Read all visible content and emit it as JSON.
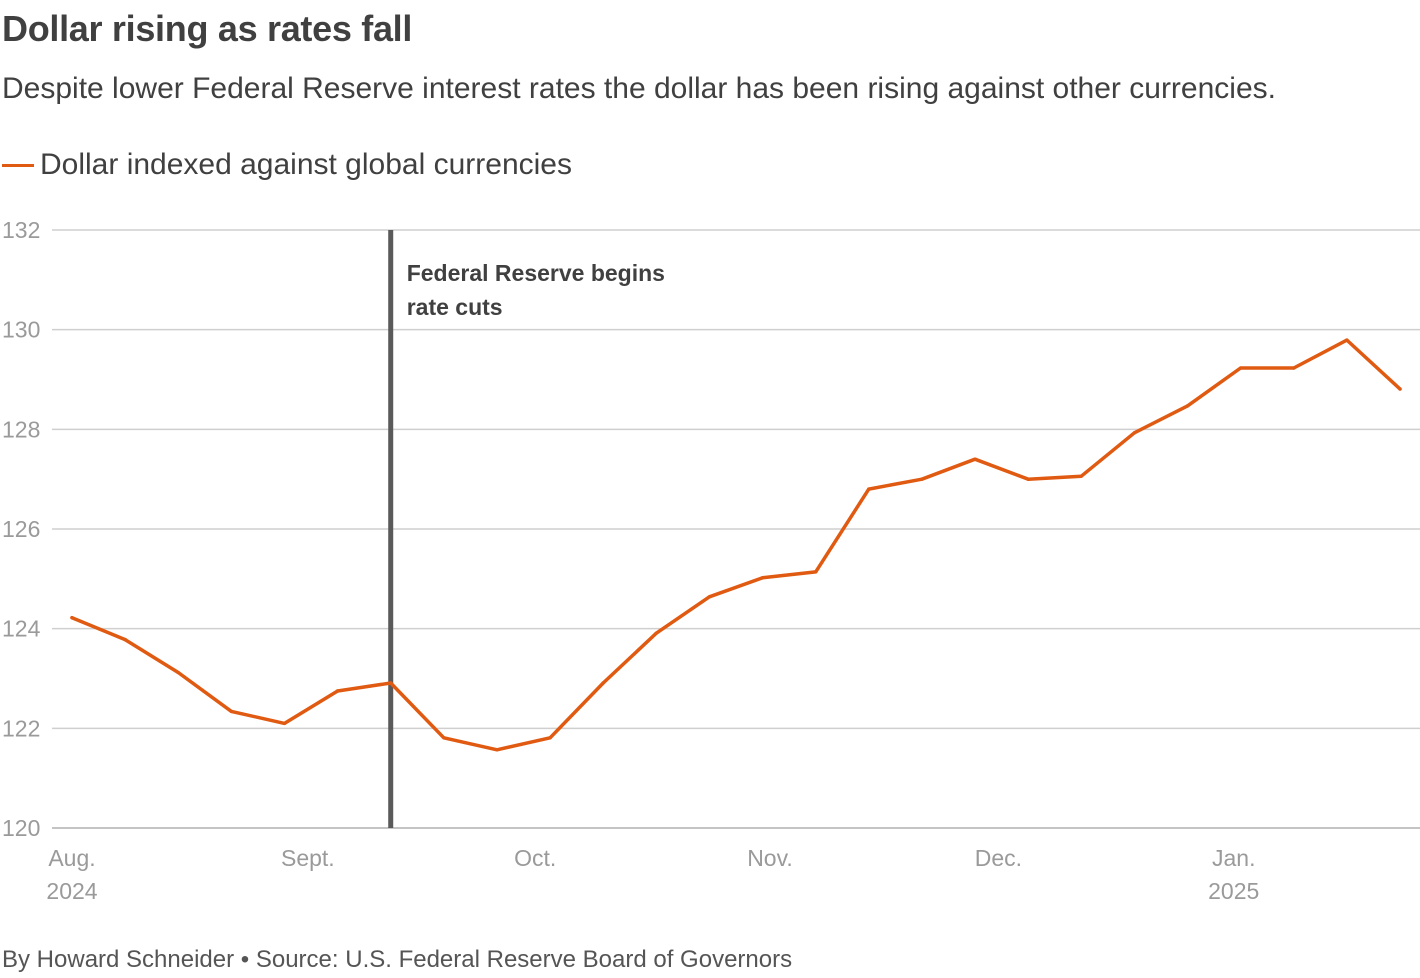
{
  "chart_data": {
    "type": "line",
    "title": "Dollar rising as rates fall",
    "subtitle": "Despite lower Federal Reserve interest rates the dollar has been rising against other currencies.",
    "series": [
      {
        "name": "Dollar indexed against global currencies",
        "color": "#e05a12",
        "values": [
          124.22,
          123.78,
          123.12,
          122.34,
          122.1,
          122.75,
          122.91,
          121.81,
          121.57,
          121.81,
          122.91,
          123.91,
          124.64,
          125.02,
          125.14,
          126.8,
          127.0,
          127.4,
          127.0,
          127.06,
          127.93,
          128.47,
          129.23,
          129.23,
          129.79,
          128.81
        ]
      }
    ],
    "x_ticks": [
      {
        "index": 0,
        "label": "Aug.",
        "sublabel": "2024"
      },
      {
        "index": 4.44,
        "label": "Sept.",
        "sublabel": ""
      },
      {
        "index": 8.72,
        "label": "Oct.",
        "sublabel": ""
      },
      {
        "index": 13.14,
        "label": "Nov.",
        "sublabel": ""
      },
      {
        "index": 17.44,
        "label": "Dec.",
        "sublabel": ""
      },
      {
        "index": 21.87,
        "label": "Jan.",
        "sublabel": "2025"
      }
    ],
    "y_ticks": [
      120,
      122,
      124,
      126,
      128,
      130,
      132
    ],
    "ylim": [
      120,
      132
    ],
    "grid": true,
    "legend_position": "top-left",
    "annotation": {
      "index": 6,
      "lines": [
        "Federal Reserve begins",
        "rate cuts"
      ]
    },
    "xlabel": "",
    "ylabel": ""
  },
  "footer": "By Howard Schneider • Source: U.S. Federal Reserve Board of Governors"
}
